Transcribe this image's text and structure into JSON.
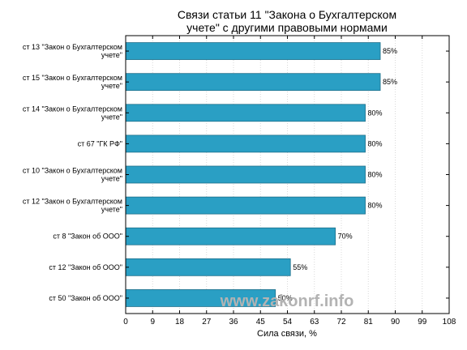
{
  "watermark": "www.zakonrf.info",
  "colors": {
    "bar_fill": "#2a9fc4",
    "bar_stroke": "#1e6f8a",
    "grid": "#d9d9d9",
    "axis": "#000000",
    "watermark": "#b3b3b3"
  },
  "chart_data": {
    "type": "bar",
    "orientation": "horizontal",
    "title_lines": [
      "Связи статьи 11 \"Закона о Бухгалтерском",
      "учете\" с другими правовыми нормами"
    ],
    "categories": [
      [
        "ст 13 \"Закон о Бухгалтерском",
        "учете\""
      ],
      [
        "ст 15 \"Закон о Бухгалтерском",
        "учете\""
      ],
      [
        "ст 14 \"Закон о Бухгалтерском",
        "учете\""
      ],
      [
        "ст 67 \"ГК РФ\""
      ],
      [
        "ст 10 \"Закон о Бухгалтерском",
        "учете\""
      ],
      [
        "ст 12 \"Закон о Бухгалтерском",
        "учете\""
      ],
      [
        "ст 8 \"Закон об ООО\""
      ],
      [
        "ст 12 \"Закон об ООО\""
      ],
      [
        "ст 50 \"Закон об ООО\""
      ]
    ],
    "values": [
      85,
      85,
      80,
      80,
      80,
      80,
      70,
      55,
      50
    ],
    "value_labels": [
      "85%",
      "85%",
      "80%",
      "80%",
      "80%",
      "80%",
      "70%",
      "55%",
      "50%"
    ],
    "xlabel": "Сила связи, %",
    "ylabel": "",
    "xlim": [
      0,
      108
    ],
    "xticks": [
      0,
      9,
      18,
      27,
      36,
      45,
      54,
      63,
      72,
      81,
      90,
      99,
      108
    ],
    "grid": true,
    "legend": "none"
  }
}
